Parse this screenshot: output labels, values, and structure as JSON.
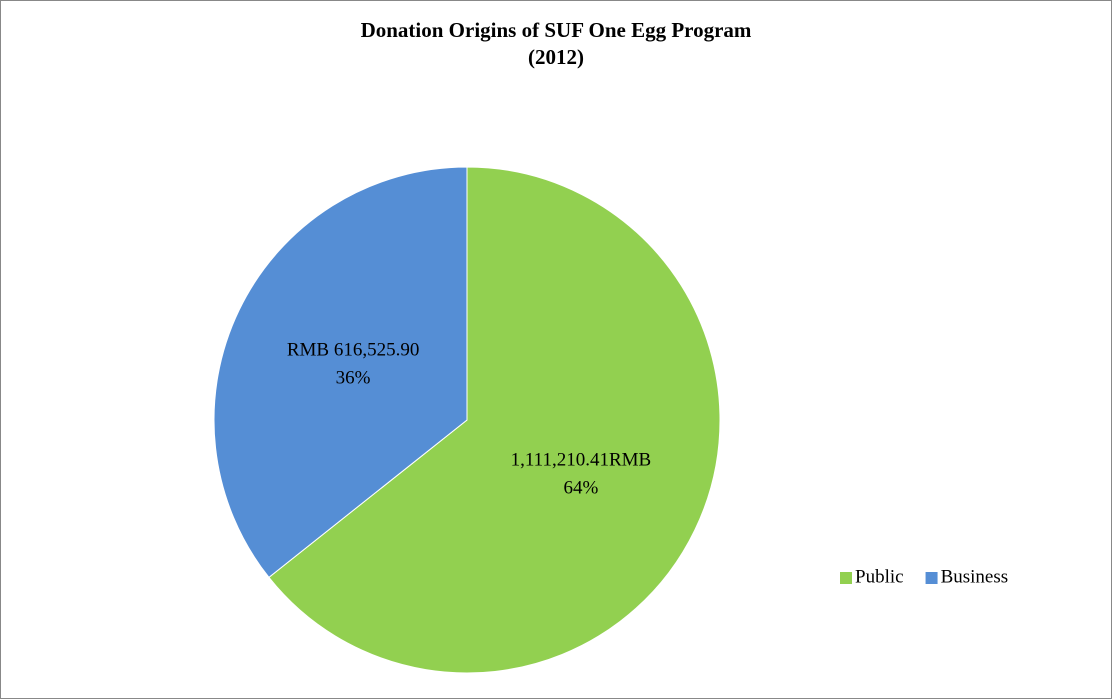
{
  "chart_data": {
    "type": "pie",
    "title": "Donation Origins of SUF One Egg Program",
    "subtitle": "(2012)",
    "categories": [
      "Public",
      "Business"
    ],
    "values": [
      1111210.41,
      616525.9
    ],
    "value_labels": [
      "1,111,210.41RMB",
      "RMB 616,525.90"
    ],
    "percent_values": [
      64,
      36
    ],
    "percent_labels": [
      "64%",
      "36%"
    ],
    "colors": [
      "#92d050",
      "#558ed5"
    ],
    "legend": "right"
  }
}
